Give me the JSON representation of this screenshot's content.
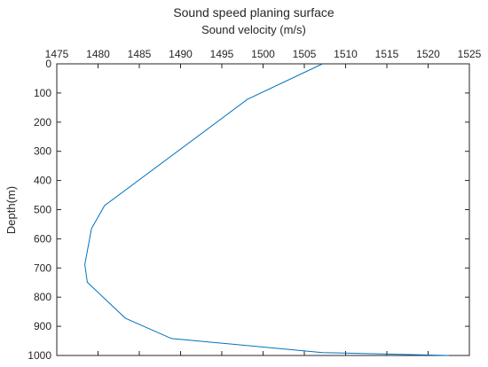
{
  "chart_data": {
    "type": "line",
    "title": "Sound speed planing surface",
    "xlabel": "Sound velocity (m/s)",
    "ylabel": "Depth(m)",
    "xlim": [
      1475,
      1525
    ],
    "ylim": [
      0,
      1000
    ],
    "y_reversed": true,
    "x_axis_position": "top",
    "xticks": [
      "1475",
      "1480",
      "1485",
      "1490",
      "1495",
      "1500",
      "1505",
      "1510",
      "1515",
      "1520",
      "1525"
    ],
    "yticks": [
      "0",
      "100",
      "200",
      "300",
      "400",
      "500",
      "600",
      "700",
      "800",
      "900",
      "1000"
    ],
    "grid": false,
    "series_color": "#0072BD",
    "series": [
      {
        "x": [
          1507.2,
          1498.1,
          1480.8,
          1479.2,
          1478.4,
          1478.7,
          1483.3,
          1488.9,
          1507.2,
          1522.5
        ],
        "y": [
          0,
          122,
          486,
          565,
          688,
          749,
          872,
          942,
          990,
          1000
        ]
      }
    ]
  }
}
